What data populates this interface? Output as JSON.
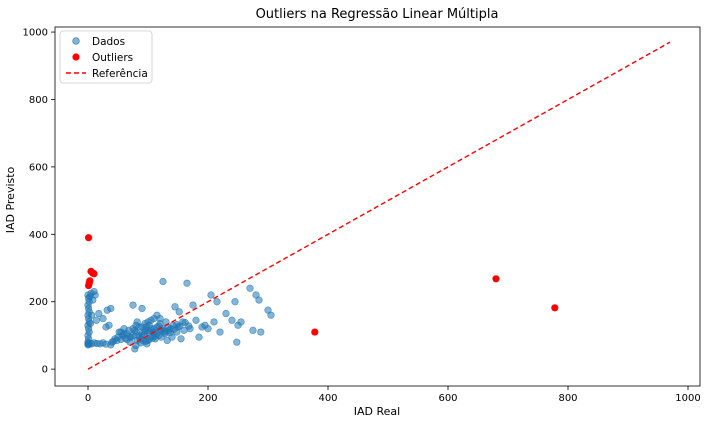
{
  "chart_data": {
    "type": "scatter",
    "title": "Outliers na Regressão Linear Múltipla",
    "xlabel": "IAD Real",
    "ylabel": "IAD Previsto",
    "xlim": [
      -55,
      1020
    ],
    "ylim": [
      -50,
      1015
    ],
    "xticks": [
      0,
      200,
      400,
      600,
      800,
      1000
    ],
    "yticks": [
      0,
      200,
      400,
      600,
      800,
      1000
    ],
    "grid": false,
    "legend_position": "top-left",
    "series": [
      {
        "name": "Dados",
        "kind": "points",
        "color": "#1f77b4",
        "opacity": 0.55,
        "points": [
          [
            0,
            72
          ],
          [
            0,
            75
          ],
          [
            1,
            78
          ],
          [
            0,
            80
          ],
          [
            2,
            74
          ],
          [
            1,
            90
          ],
          [
            0,
            100
          ],
          [
            2,
            110
          ],
          [
            1,
            120
          ],
          [
            0,
            130
          ],
          [
            2,
            140
          ],
          [
            1,
            150
          ],
          [
            0,
            160
          ],
          [
            2,
            170
          ],
          [
            1,
            180
          ],
          [
            0,
            190
          ],
          [
            2,
            200
          ],
          [
            1,
            210
          ],
          [
            0,
            220
          ],
          [
            3,
            215
          ],
          [
            5,
            225
          ],
          [
            8,
            205
          ],
          [
            6,
            160
          ],
          [
            4,
            135
          ],
          [
            10,
            230
          ],
          [
            12,
            220
          ],
          [
            6,
            75
          ],
          [
            10,
            78
          ],
          [
            15,
            76
          ],
          [
            20,
            75
          ],
          [
            25,
            78
          ],
          [
            30,
            74
          ],
          [
            38,
            72
          ],
          [
            14,
            145
          ],
          [
            18,
            165
          ],
          [
            25,
            150
          ],
          [
            32,
            175
          ],
          [
            38,
            180
          ],
          [
            30,
            125
          ],
          [
            35,
            130
          ],
          [
            40,
            80
          ],
          [
            42,
            82
          ],
          [
            45,
            90
          ],
          [
            48,
            85
          ],
          [
            50,
            95
          ],
          [
            52,
            110
          ],
          [
            55,
            88
          ],
          [
            58,
            100
          ],
          [
            60,
            120
          ],
          [
            62,
            92
          ],
          [
            65,
            105
          ],
          [
            68,
            115
          ],
          [
            70,
            80
          ],
          [
            72,
            95
          ],
          [
            75,
            190
          ],
          [
            78,
            60
          ],
          [
            80,
            70
          ],
          [
            82,
            85
          ],
          [
            85,
            125
          ],
          [
            88,
            90
          ],
          [
            90,
            180
          ],
          [
            92,
            100
          ],
          [
            95,
            115
          ],
          [
            98,
            75
          ],
          [
            100,
            85
          ],
          [
            102,
            130
          ],
          [
            105,
            95
          ],
          [
            108,
            110
          ],
          [
            110,
            120
          ],
          [
            112,
            90
          ],
          [
            115,
            125
          ],
          [
            118,
            100
          ],
          [
            120,
            135
          ],
          [
            122,
            95
          ],
          [
            125,
            260
          ],
          [
            128,
            105
          ],
          [
            130,
            140
          ],
          [
            132,
            85
          ],
          [
            135,
            115
          ],
          [
            138,
            120
          ],
          [
            140,
            95
          ],
          [
            142,
            130
          ],
          [
            145,
            185
          ],
          [
            148,
            110
          ],
          [
            150,
            125
          ],
          [
            152,
            170
          ],
          [
            155,
            90
          ],
          [
            158,
            140
          ],
          [
            160,
            115
          ],
          [
            165,
            255
          ],
          [
            170,
            120
          ],
          [
            175,
            190
          ],
          [
            180,
            145
          ],
          [
            185,
            95
          ],
          [
            190,
            125
          ],
          [
            195,
            130
          ],
          [
            200,
            120
          ],
          [
            205,
            220
          ],
          [
            210,
            140
          ],
          [
            215,
            200
          ],
          [
            220,
            110
          ],
          [
            230,
            165
          ],
          [
            240,
            145
          ],
          [
            245,
            200
          ],
          [
            248,
            80
          ],
          [
            250,
            130
          ],
          [
            255,
            140
          ],
          [
            270,
            240
          ],
          [
            275,
            115
          ],
          [
            280,
            220
          ],
          [
            285,
            205
          ],
          [
            288,
            110
          ],
          [
            300,
            175
          ],
          [
            305,
            160
          ],
          [
            75,
            100
          ],
          [
            80,
            110
          ],
          [
            85,
            100
          ],
          [
            90,
            105
          ],
          [
            95,
            110
          ],
          [
            100,
            115
          ],
          [
            105,
            120
          ],
          [
            110,
            110
          ],
          [
            115,
            105
          ],
          [
            120,
            115
          ],
          [
            125,
            120
          ],
          [
            130,
            110
          ],
          [
            85,
            95
          ],
          [
            90,
            125
          ],
          [
            95,
            135
          ],
          [
            100,
            140
          ],
          [
            105,
            145
          ],
          [
            110,
            150
          ],
          [
            65,
            88
          ],
          [
            70,
            95
          ],
          [
            60,
            105
          ],
          [
            55,
            110
          ],
          [
            75,
            120
          ],
          [
            80,
            130
          ],
          [
            115,
            160
          ],
          [
            120,
            150
          ],
          [
            108,
            92
          ],
          [
            112,
            98
          ],
          [
            96,
            82
          ],
          [
            102,
            88
          ],
          [
            88,
            78
          ],
          [
            92,
            84
          ],
          [
            78,
            115
          ],
          [
            82,
            140
          ],
          [
            97,
            125
          ],
          [
            103,
            108
          ],
          [
            118,
            128
          ],
          [
            122,
            118
          ],
          [
            127,
            112
          ],
          [
            133,
            124
          ],
          [
            137,
            108
          ],
          [
            143,
            118
          ],
          [
            148,
            132
          ],
          [
            153,
            128
          ],
          [
            162,
            138
          ],
          [
            168,
            128
          ]
        ]
      },
      {
        "name": "Outliers",
        "kind": "points",
        "color": "#ff0000",
        "opacity": 1,
        "points": [
          [
            1,
            390
          ],
          [
            5,
            290
          ],
          [
            8,
            285
          ],
          [
            10,
            283
          ],
          [
            3,
            262
          ],
          [
            2,
            255
          ],
          [
            1,
            248
          ],
          [
            378,
            110
          ],
          [
            680,
            268
          ],
          [
            778,
            182
          ]
        ]
      },
      {
        "name": "Referência",
        "kind": "line",
        "style": "dashed",
        "color": "#ff0000",
        "points": [
          [
            0,
            0
          ],
          [
            970,
            970
          ]
        ]
      }
    ]
  }
}
